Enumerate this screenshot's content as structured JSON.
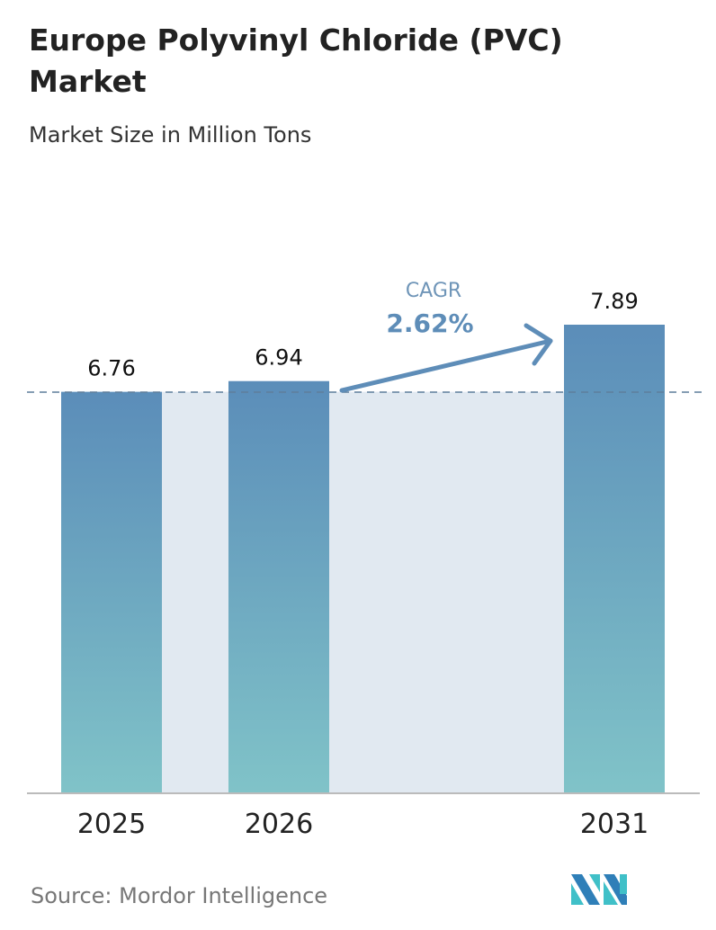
{
  "chart_data": {
    "type": "bar",
    "title": "Europe Polyvinyl Chloride (PVC) Market",
    "subtitle": "Market Size in Million Tons",
    "categories": [
      "2025",
      "2026",
      "2031"
    ],
    "values": [
      6.76,
      6.94,
      7.89
    ],
    "data_labels": [
      "6.76",
      "6.94",
      "7.89"
    ],
    "ylim": [
      0,
      7.89
    ],
    "grid": false,
    "annotation": {
      "label": "CAGR",
      "value": "2.62%"
    },
    "colors": {
      "bar_top": "#5b8db9",
      "bar_bottom": "#80c3c8",
      "band": "#e1e9f1",
      "accent": "#5e8db8"
    }
  },
  "source": "Source:  Mordor Intelligence",
  "logo": "Mordor Intelligence"
}
